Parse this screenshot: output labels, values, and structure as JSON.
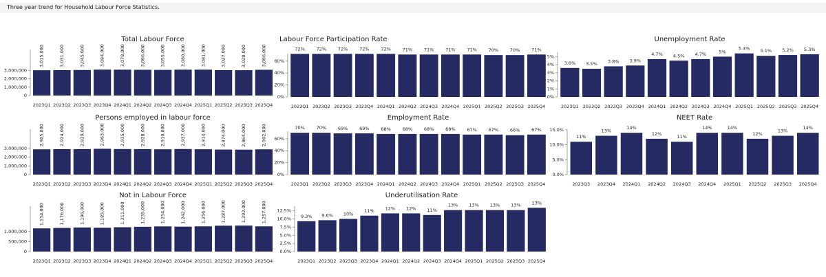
{
  "header": {
    "title": "Three year trend for Household Labour Force Statistics."
  },
  "chart_data": [
    {
      "type": "bar",
      "title": "Total Labour Force",
      "color": "#252a62",
      "categories": [
        "2023Q1",
        "2023Q2",
        "2023Q3",
        "2023Q4",
        "2024Q1",
        "2024Q2",
        "2024Q3",
        "2024Q4",
        "2025Q1",
        "2025Q2",
        "2025Q3",
        "2025Q4"
      ],
      "values": [
        3015000,
        3031000,
        3045000,
        3084000,
        3078000,
        3066000,
        3055000,
        3080000,
        3081000,
        3027000,
        3020000,
        3066000
      ],
      "value_labels": [
        "3,015,000",
        "3,031,000",
        "3,045,000",
        "3,084,000",
        "3,078,000",
        "3,066,000",
        "3,055,000",
        "3,080,000",
        "3,081,000",
        "3,027,000",
        "3,020,000",
        "3,066,000"
      ],
      "ylim": [
        0,
        6300000
      ],
      "yticks": [
        0,
        {
          "value": 1000000,
          "label": "1,000,000"
        },
        {
          "value": 2000000,
          "label": "2,000,000"
        },
        {
          "value": 3000000,
          "label": "3,000,000"
        }
      ]
    },
    {
      "type": "bar",
      "title": "Persons employed in labour force",
      "color": "#252a62",
      "categories": [
        "2023Q1",
        "2023Q2",
        "2023Q3",
        "2023Q4",
        "2024Q1",
        "2024Q2",
        "2024Q3",
        "2024Q4",
        "2025Q1",
        "2025Q2",
        "2025Q3",
        "2025Q4"
      ],
      "values": [
        2905000,
        2924000,
        2929000,
        2963000,
        2935000,
        2928000,
        2910000,
        2937000,
        2914000,
        2874000,
        2864000,
        2902000
      ],
      "value_labels": [
        "2,905,000",
        "2,924,000",
        "2,929,000",
        "2,963,000",
        "2,935,000",
        "2,928,000",
        "2,910,000",
        "2,937,000",
        "2,914,000",
        "2,874,000",
        "2,864,000",
        "2,902,000"
      ],
      "ylim": [
        0,
        6000000
      ],
      "yticks": [
        0,
        {
          "value": 1000000,
          "label": "1,000,000"
        },
        {
          "value": 2000000,
          "label": "2,000,000"
        },
        {
          "value": 3000000,
          "label": "3,000,000"
        }
      ]
    },
    {
      "type": "bar",
      "title": "Not in Labour Force",
      "color": "#252a62",
      "categories": [
        "2023Q1",
        "2023Q2",
        "2023Q3",
        "2023Q4",
        "2024Q1",
        "2024Q2",
        "2024Q3",
        "2024Q4",
        "2025Q1",
        "2025Q2",
        "2025Q3",
        "2025Q4"
      ],
      "values": [
        1154000,
        1176000,
        1196000,
        1185000,
        1211000,
        1235000,
        1254000,
        1242000,
        1256000,
        1287000,
        1292000,
        1257000
      ],
      "value_labels": [
        "1,154,000",
        "1,176,000",
        "1,196,000",
        "1,185,000",
        "1,211,000",
        "1,235,000",
        "1,254,000",
        "1,242,000",
        "1,256,000",
        "1,287,000",
        "1,292,000",
        "1,257,000"
      ],
      "ylim": [
        0,
        2600000
      ],
      "yticks": [
        0,
        {
          "value": 500000,
          "label": "500,000"
        },
        {
          "value": 1000000,
          "label": "1,000,000"
        }
      ]
    },
    {
      "type": "bar",
      "title": "Labour Force Participation Rate",
      "color": "#252a62",
      "categories": [
        "2023Q1",
        "2023Q2",
        "2023Q3",
        "2023Q4",
        "2024Q1",
        "2024Q2",
        "2024Q3",
        "2024Q4",
        "2025Q1",
        "2025Q2",
        "2025Q3",
        "2025Q4"
      ],
      "values": [
        72,
        72,
        72,
        72,
        72,
        71,
        71,
        71,
        71,
        70,
        70,
        71
      ],
      "value_labels": [
        "72%",
        "72%",
        "72%",
        "72%",
        "72%",
        "71%",
        "71%",
        "71%",
        "71%",
        "70%",
        "70%",
        "71%"
      ],
      "ylim": [
        0,
        84
      ],
      "yticks": [
        {
          "value": 0,
          "label": "0%"
        },
        {
          "value": 20,
          "label": "20%"
        },
        {
          "value": 40,
          "label": "40%"
        },
        {
          "value": 60,
          "label": "60%"
        }
      ]
    },
    {
      "type": "bar",
      "title": "Employment Rate",
      "color": "#252a62",
      "categories": [
        "2023Q1",
        "2023Q2",
        "2023Q3",
        "2023Q4",
        "2024Q1",
        "2024Q2",
        "2024Q3",
        "2024Q4",
        "2025Q1",
        "2025Q2",
        "2025Q3",
        "2025Q4"
      ],
      "values": [
        70,
        70,
        69,
        69,
        68,
        68,
        68,
        68,
        67,
        67,
        66,
        67
      ],
      "value_labels": [
        "70%",
        "70%",
        "69%",
        "69%",
        "68%",
        "68%",
        "68%",
        "68%",
        "67%",
        "67%",
        "66%",
        "67%"
      ],
      "ylim": [
        0,
        84
      ],
      "yticks": [
        {
          "value": 0,
          "label": "0%"
        },
        {
          "value": 20,
          "label": "20%"
        },
        {
          "value": 40,
          "label": "40%"
        },
        {
          "value": 60,
          "label": "60%"
        }
      ]
    },
    {
      "type": "bar",
      "title": "Underutilisation Rate",
      "color": "#252a62",
      "categories": [
        "2023Q1",
        "2023Q2",
        "2023Q3",
        "2023Q4",
        "2024Q1",
        "2024Q2",
        "2024Q3",
        "2024Q4",
        "2025Q1",
        "2025Q2",
        "2025Q3",
        "2025Q4"
      ],
      "values": [
        9.3,
        9.6,
        10.0,
        11.0,
        11.7,
        11.7,
        11.2,
        12.7,
        12.7,
        12.7,
        12.7,
        13.4
      ],
      "value_labels": [
        "9.3%",
        "9.6%",
        "10%",
        "11%",
        "12%",
        "12%",
        "11%",
        "13%",
        "13%",
        "13%",
        "13%",
        "13%"
      ],
      "ylim": [
        0,
        16
      ],
      "yticks": [
        {
          "value": 0,
          "label": "0.0%"
        },
        {
          "value": 2.5,
          "label": "2.5%"
        },
        {
          "value": 5,
          "label": "5.0%"
        },
        {
          "value": 7.5,
          "label": "7.5%"
        },
        {
          "value": 10,
          "label": "10.0%"
        },
        {
          "value": 12.5,
          "label": "12.5%"
        }
      ]
    },
    {
      "type": "bar",
      "title": "Unemployment Rate",
      "color": "#252a62",
      "categories": [
        "2023Q1",
        "2023Q2",
        "2023Q3",
        "2023Q4",
        "2024Q1",
        "2024Q2",
        "2024Q3",
        "2024Q4",
        "2025Q1",
        "2025Q2",
        "2025Q3",
        "2025Q4"
      ],
      "values": [
        3.6,
        3.5,
        3.8,
        3.9,
        4.7,
        4.5,
        4.7,
        5,
        5.4,
        5.1,
        5.2,
        5.3
      ],
      "value_labels": [
        "3.6%",
        "3.5%",
        "3.8%",
        "3.9%",
        "4.7%",
        "4.5%",
        "4.7%",
        "5%",
        "5.4%",
        "5.1%",
        "5.2%",
        "5.3%"
      ],
      "ylim": [
        0,
        6.4
      ],
      "yticks": [
        {
          "value": 0,
          "label": "0%"
        },
        {
          "value": 1,
          "label": "1%"
        },
        {
          "value": 2,
          "label": "2%"
        },
        {
          "value": 3,
          "label": "3%"
        },
        {
          "value": 4,
          "label": "4%"
        },
        {
          "value": 5,
          "label": "5%"
        }
      ]
    },
    {
      "type": "bar",
      "title": "NEET Rate",
      "color": "#252a62",
      "categories": [
        "2023Q3",
        "2023Q4",
        "2024Q1",
        "2024Q2",
        "2024Q3",
        "2024Q4",
        "2025Q1",
        "2025Q2",
        "2025Q3",
        "2025Q4"
      ],
      "values": [
        11,
        13,
        14,
        12,
        11,
        14,
        14,
        12,
        13,
        14
      ],
      "value_labels": [
        "11%",
        "13%",
        "14%",
        "12%",
        "11%",
        "14%",
        "14%",
        "12%",
        "13%",
        "14%"
      ],
      "ylim": [
        0,
        17.5
      ],
      "yticks": [
        {
          "value": 0,
          "label": "0.0%"
        },
        {
          "value": 5,
          "label": "5.0%"
        },
        {
          "value": 10,
          "label": "10.0%"
        },
        {
          "value": 15,
          "label": "15.0%"
        }
      ]
    }
  ]
}
